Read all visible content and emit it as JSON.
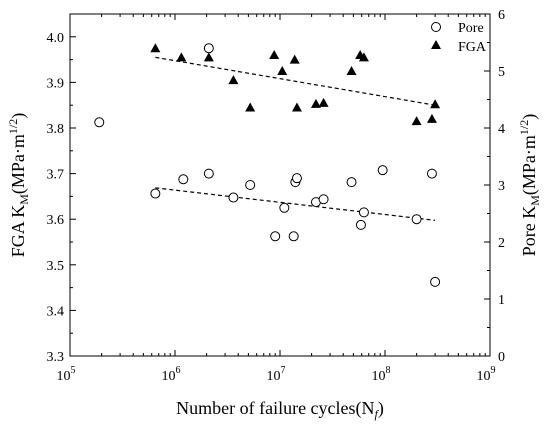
{
  "chart_data": {
    "type": "scatter",
    "x_axis": {
      "label": "Number of failure cycles(N",
      "label_sub": "f",
      "label_end": ")",
      "scale": "log",
      "range": [
        100000,
        1000000000
      ],
      "tick_values": [
        100000,
        1000000,
        10000000,
        100000000,
        1000000000
      ],
      "tick_labels": [
        {
          "base": "10",
          "exp": "5"
        },
        {
          "base": "10",
          "exp": "6"
        },
        {
          "base": "10",
          "exp": "7"
        },
        {
          "base": "10",
          "exp": "8"
        },
        {
          "base": "10",
          "exp": "9"
        }
      ]
    },
    "y_left": {
      "label": "FGA K",
      "label_sub": "M",
      "label_unit": "(MPa·m",
      "label_sup": "1/2",
      "label_end": ")",
      "range": [
        3.3,
        4.05
      ],
      "ticks": [
        3.3,
        3.4,
        3.5,
        3.6,
        3.7,
        3.8,
        3.9,
        4.0
      ],
      "tick_labels": [
        "3.3",
        "3.4",
        "3.5",
        "3.6",
        "3.7",
        "3.8",
        "3.9",
        "4.0"
      ]
    },
    "y_right": {
      "label": "Pore K",
      "label_sub": "M",
      "label_unit": "(MPa·m",
      "label_sup": "1/2",
      "label_end": ")",
      "range": [
        0,
        6
      ],
      "ticks": [
        0,
        1,
        2,
        3,
        4,
        5,
        6
      ],
      "tick_labels": [
        "0",
        "1",
        "2",
        "3",
        "4",
        "5",
        "6"
      ]
    },
    "legend": {
      "position": "top-right",
      "items": [
        {
          "label": "Pore",
          "marker": "open-circle"
        },
        {
          "label": "FGA",
          "marker": "filled-triangle"
        }
      ]
    },
    "grid": false,
    "series": [
      {
        "name": "Pore",
        "axis": "right",
        "marker": "open-circle",
        "points": [
          [
            190000,
            4.1
          ],
          [
            650000,
            2.85
          ],
          [
            1200000,
            3.1
          ],
          [
            2100000,
            3.2
          ],
          [
            2100000,
            5.4
          ],
          [
            3600000,
            2.78
          ],
          [
            5200000,
            3.0
          ],
          [
            9000000,
            2.1
          ],
          [
            11000000,
            2.6
          ],
          [
            13500000,
            2.1
          ],
          [
            14000000,
            3.05
          ],
          [
            14500000,
            3.12
          ],
          [
            22000000,
            2.7
          ],
          [
            26000000,
            2.75
          ],
          [
            48000000,
            3.05
          ],
          [
            59000000,
            2.3
          ],
          [
            63000000,
            2.52
          ],
          [
            95000000,
            3.26
          ],
          [
            200000000,
            2.4
          ],
          [
            280000000,
            3.2
          ],
          [
            300000000,
            1.3
          ]
        ],
        "trend": [
          [
            650000,
            2.95
          ],
          [
            300000000,
            2.38
          ]
        ]
      },
      {
        "name": "FGA",
        "axis": "left",
        "marker": "filled-triangle",
        "points": [
          [
            650000,
            3.975
          ],
          [
            1150000,
            3.955
          ],
          [
            2100000,
            3.955
          ],
          [
            3600000,
            3.905
          ],
          [
            5200000,
            3.845
          ],
          [
            8800000,
            3.96
          ],
          [
            10500000,
            3.925
          ],
          [
            13800000,
            3.95
          ],
          [
            14500000,
            3.845
          ],
          [
            22000000,
            3.853
          ],
          [
            26000000,
            3.855
          ],
          [
            48000000,
            3.925
          ],
          [
            58000000,
            3.96
          ],
          [
            63000000,
            3.955
          ],
          [
            200000000,
            3.815
          ],
          [
            280000000,
            3.82
          ],
          [
            300000000,
            3.852
          ]
        ],
        "trend": [
          [
            650000,
            3.955
          ],
          [
            300000000,
            3.85
          ]
        ]
      }
    ]
  }
}
